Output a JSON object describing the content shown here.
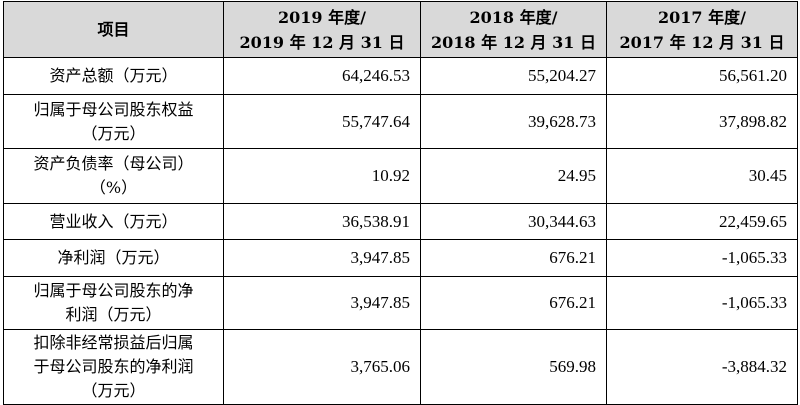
{
  "header": {
    "item": "项目",
    "col2019": [
      "2019 年度/",
      "2019 年 12 月 31 日"
    ],
    "col2018": [
      "2018 年度/",
      "2018 年 12 月 31 日"
    ],
    "col2017": [
      "2017 年度/",
      "2017 年 12 月 31 日"
    ]
  },
  "rows": [
    {
      "label": [
        "资产总额（万元）"
      ],
      "v2019": "64,246.53",
      "v2018": "55,204.27",
      "v2017": "56,561.20"
    },
    {
      "label": [
        "归属于母公司股东权益",
        "（万元）"
      ],
      "v2019": "55,747.64",
      "v2018": "39,628.73",
      "v2017": "37,898.82"
    },
    {
      "label": [
        "资产负债率（母公司）",
        "（%）"
      ],
      "v2019": "10.92",
      "v2018": "24.95",
      "v2017": "30.45"
    },
    {
      "label": [
        "营业收入（万元）"
      ],
      "v2019": "36,538.91",
      "v2018": "30,344.63",
      "v2017": "22,459.65"
    },
    {
      "label": [
        "净利润（万元）"
      ],
      "v2019": "3,947.85",
      "v2018": "676.21",
      "v2017": "-1,065.33"
    },
    {
      "label": [
        "归属于母公司股东的净",
        "利润（万元）"
      ],
      "v2019": "3,947.85",
      "v2018": "676.21",
      "v2017": "-1,065.33"
    },
    {
      "label": [
        "扣除非经常损益后归属",
        "于母公司股东的净利润",
        "（万元）"
      ],
      "v2019": "3,765.06",
      "v2018": "569.98",
      "v2017": "-3,884.32"
    }
  ]
}
